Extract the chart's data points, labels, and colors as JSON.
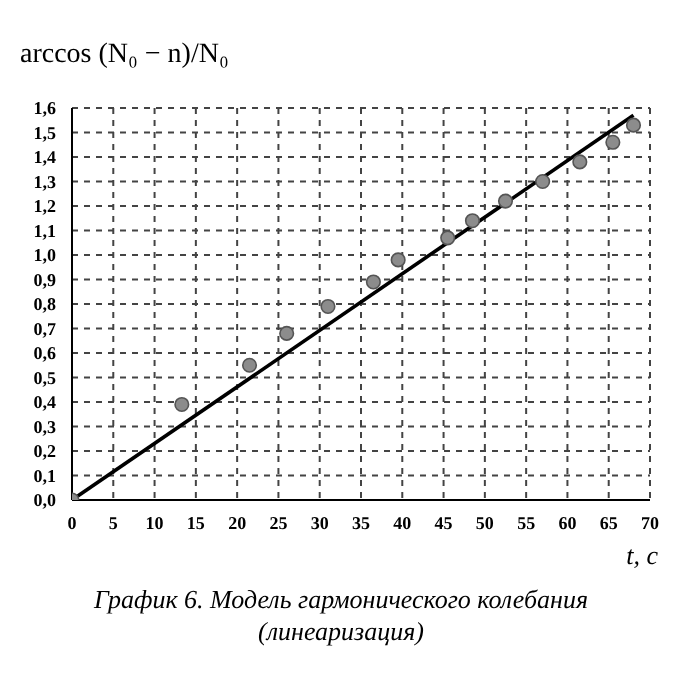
{
  "chart_data": {
    "type": "scatter",
    "title": "График 6. Модель гармонического колебания (линеаризация)",
    "xlabel": "t, с",
    "ylabel": "arccos (N₀ − n)/N₀",
    "series": [
      {
        "color": "#8c8c8c",
        "x": [
          0,
          13.3,
          21.5,
          26,
          31,
          36.5,
          39.5,
          45.5,
          48.5,
          52.5,
          57,
          61.5,
          65.5,
          68
        ],
        "values": [
          0,
          0.39,
          0.55,
          0.68,
          0.79,
          0.89,
          0.98,
          1.07,
          1.14,
          1.22,
          1.3,
          1.38,
          1.46,
          1.53
        ]
      },
      {
        "type": "line",
        "marker": "none",
        "color": "#000000",
        "x": [
          0,
          68
        ],
        "values": [
          0,
          1.57
        ]
      }
    ],
    "xlim": [
      0,
      70
    ],
    "ylim": [
      0,
      1.6
    ],
    "xticks": [
      0,
      5,
      10,
      15,
      20,
      25,
      30,
      35,
      40,
      45,
      50,
      55,
      60,
      65,
      70
    ],
    "yticks": [
      {
        "value": 0,
        "label": "0,0"
      },
      {
        "value": 0.1,
        "label": "0,1"
      },
      {
        "value": 0.2,
        "label": "0,2"
      },
      {
        "value": 0.3,
        "label": "0,3"
      },
      {
        "value": 0.4,
        "label": "0,4"
      },
      {
        "value": 0.5,
        "label": "0,5"
      },
      {
        "value": 0.6,
        "label": "0,6"
      },
      {
        "value": 0.7,
        "label": "0,7"
      },
      {
        "value": 0.8,
        "label": "0,8"
      },
      {
        "value": 0.9,
        "label": "0,9"
      },
      {
        "value": 1,
        "label": "1,0"
      },
      {
        "value": 1.1,
        "label": "1,1"
      },
      {
        "value": 1.2,
        "label": "1,2"
      },
      {
        "value": 1.3,
        "label": "1,3"
      },
      {
        "value": 1.4,
        "label": "1,4"
      },
      {
        "value": 1.5,
        "label": "1,5"
      },
      {
        "value": 1.6,
        "label": "1,6"
      }
    ],
    "grid": true,
    "marker": "circle",
    "line_style": "solid"
  }
}
